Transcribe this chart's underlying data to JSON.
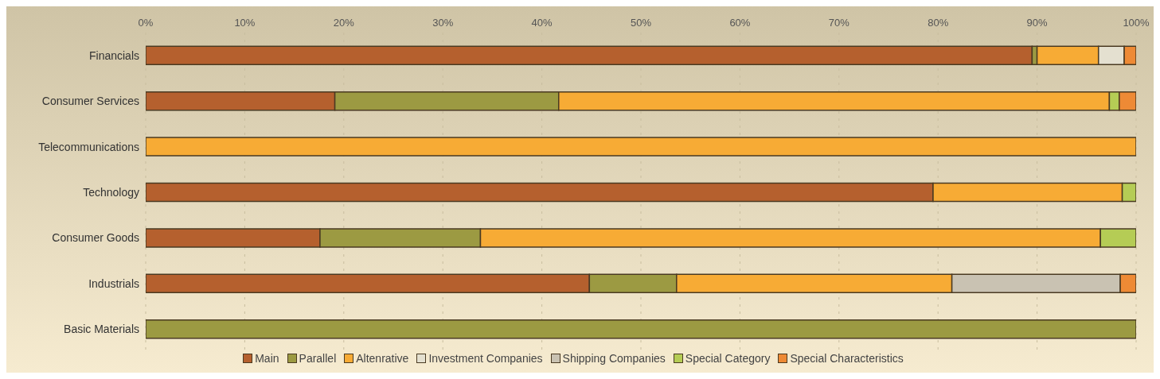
{
  "chart_data": {
    "type": "bar",
    "orientation": "horizontal",
    "stacked": true,
    "categories": [
      "Financials",
      "Consumer Services",
      "Telecommunications",
      "Technology",
      "Consumer Goods",
      "Industrials",
      "Basic Materials"
    ],
    "series": [
      {
        "name": "Main",
        "color": "#b5602e",
        "values": [
          89.5,
          19.1,
          null,
          79.5,
          17.6,
          44.8,
          null
        ]
      },
      {
        "name": "Parallel",
        "color": "#9c9a42",
        "values": [
          0.5,
          22.6,
          null,
          null,
          16.2,
          8.8,
          100
        ]
      },
      {
        "name": "Altenrative",
        "color": "#f7ab35",
        "values": [
          6.2,
          55.6,
          100,
          19.1,
          62.6,
          27.8,
          null
        ]
      },
      {
        "name": "Investment Companies",
        "color": "#e4e0d0",
        "values": [
          2.6,
          null,
          null,
          null,
          null,
          null,
          null
        ]
      },
      {
        "name": "Shipping Companies",
        "color": "#c9c2b2",
        "values": [
          null,
          null,
          null,
          null,
          null,
          17.0,
          null
        ]
      },
      {
        "name": "Special Category",
        "color": "#b5cc55",
        "values": [
          null,
          1.0,
          null,
          1.4,
          3.6,
          null,
          null
        ]
      },
      {
        "name": "Special Characteristics",
        "color": "#ee8a35",
        "values": [
          1.2,
          1.7,
          null,
          null,
          null,
          1.6,
          null
        ]
      }
    ],
    "xlim": [
      0,
      100
    ],
    "xticks": [
      {
        "value": 0,
        "label": "0%"
      },
      {
        "value": 10,
        "label": "10%"
      },
      {
        "value": 20,
        "label": "20%"
      },
      {
        "value": 30,
        "label": "30%"
      },
      {
        "value": 40,
        "label": "40%"
      },
      {
        "value": 50,
        "label": "50%"
      },
      {
        "value": 60,
        "label": "60%"
      },
      {
        "value": 70,
        "label": "70%"
      },
      {
        "value": 80,
        "label": "80%"
      },
      {
        "value": 90,
        "label": "90%"
      },
      {
        "value": 100,
        "label": "100%"
      }
    ],
    "grid": "x",
    "legend": "bottom"
  }
}
